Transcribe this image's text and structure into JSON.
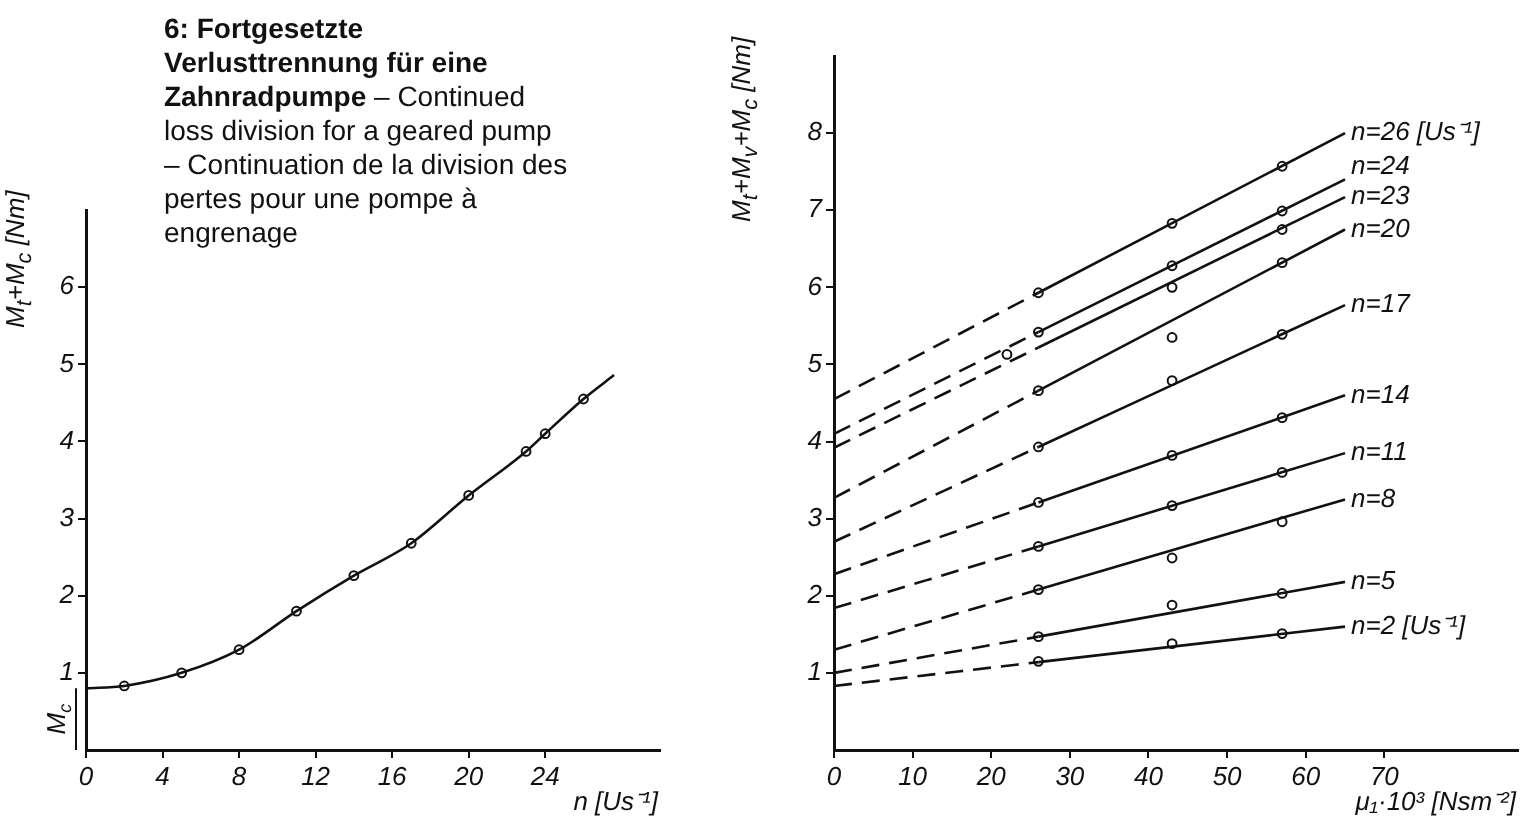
{
  "chart_data": [
    {
      "type": "line",
      "title": "6: Fortgesetzte Verlusttrennung für eine Zahnradpumpe",
      "subtitle": "– Continued loss division for a geared pump – Continuation de la division des pertes pour une pompe à engrenage",
      "xlabel": "n [Us⁻¹]",
      "ylabel": "M$_{t}$+M$_{c}$ [Nm]",
      "xlim": [
        0,
        30
      ],
      "ylim": [
        0,
        7
      ],
      "xticks": [
        0,
        4,
        8,
        12,
        16,
        20,
        24
      ],
      "yticks": [
        1,
        2,
        3,
        4,
        5,
        6
      ],
      "grid": false,
      "legend": false,
      "annotations": [
        {
          "text": "M$_{c}$",
          "x": 0,
          "y": 0.8
        }
      ],
      "series": [
        {
          "color": "#111111",
          "marker": "none",
          "line_style": "solid",
          "x": [
            0,
            2,
            5,
            8,
            11,
            14,
            17,
            20,
            23,
            24,
            26,
            27.6
          ],
          "values": [
            0.8,
            0.83,
            1.0,
            1.3,
            1.8,
            2.26,
            2.68,
            3.3,
            3.87,
            4.1,
            4.55,
            4.86
          ]
        },
        {
          "type": "scatter",
          "color": "#111111",
          "marker": "circle",
          "x": [
            2,
            5,
            8,
            11,
            14,
            17,
            20,
            23,
            24,
            26
          ],
          "values": [
            0.83,
            1.0,
            1.3,
            1.8,
            2.26,
            2.68,
            3.3,
            3.87,
            4.1,
            4.55
          ]
        }
      ]
    },
    {
      "type": "line",
      "xlabel": "μ₁·10³ [Nsm⁻²]",
      "ylabel": "M$_{t}$+M$_{v}$+M$_{c}$ [Nm]",
      "xlim": [
        0,
        87
      ],
      "ylim": [
        0,
        9
      ],
      "xticks": [
        0,
        10,
        20,
        30,
        40,
        50,
        60,
        70
      ],
      "yticks": [
        1,
        2,
        3,
        4,
        5,
        6,
        7,
        8
      ],
      "grid": false,
      "legend": false,
      "series": [
        {
          "color": "#111111",
          "line_style": "dashed",
          "marker": "none",
          "x": [
            0,
            26
          ],
          "values": [
            0.83,
            1.14
          ]
        },
        {
          "name": "n=2 [Us⁻¹]",
          "color": "#111111",
          "line_style": "solid",
          "marker": "none",
          "x": [
            26,
            65
          ],
          "values": [
            1.14,
            1.6
          ]
        },
        {
          "color": "#111111",
          "line_style": "dashed",
          "marker": "none",
          "x": [
            0,
            26
          ],
          "values": [
            1.0,
            1.47
          ]
        },
        {
          "name": "n=5",
          "color": "#111111",
          "line_style": "solid",
          "marker": "none",
          "x": [
            26,
            65
          ],
          "values": [
            1.47,
            2.18
          ]
        },
        {
          "color": "#111111",
          "line_style": "dashed",
          "marker": "none",
          "x": [
            0,
            26
          ],
          "values": [
            1.3,
            2.08
          ]
        },
        {
          "name": "n=8",
          "color": "#111111",
          "line_style": "solid",
          "marker": "none",
          "x": [
            26,
            65
          ],
          "values": [
            2.08,
            3.25
          ]
        },
        {
          "color": "#111111",
          "line_style": "dashed",
          "marker": "none",
          "x": [
            0,
            26
          ],
          "values": [
            1.84,
            2.64
          ]
        },
        {
          "name": "n=11",
          "color": "#111111",
          "line_style": "solid",
          "marker": "none",
          "x": [
            26,
            65
          ],
          "values": [
            2.64,
            3.85
          ]
        },
        {
          "color": "#111111",
          "line_style": "dashed",
          "marker": "none",
          "x": [
            0,
            26
          ],
          "values": [
            2.28,
            3.21
          ]
        },
        {
          "name": "n=14",
          "color": "#111111",
          "line_style": "solid",
          "marker": "none",
          "x": [
            26,
            65
          ],
          "values": [
            3.21,
            4.6
          ]
        },
        {
          "color": "#111111",
          "line_style": "dashed",
          "marker": "none",
          "x": [
            0,
            26
          ],
          "values": [
            2.7,
            3.93
          ]
        },
        {
          "name": "n=17",
          "color": "#111111",
          "line_style": "solid",
          "marker": "none",
          "x": [
            26,
            65
          ],
          "values": [
            3.93,
            5.77
          ]
        },
        {
          "color": "#111111",
          "line_style": "dashed",
          "marker": "none",
          "x": [
            0,
            26
          ],
          "values": [
            3.27,
            4.66
          ]
        },
        {
          "name": "n=20",
          "color": "#111111",
          "line_style": "solid",
          "marker": "none",
          "x": [
            26,
            65
          ],
          "values": [
            4.66,
            6.75
          ]
        },
        {
          "color": "#111111",
          "line_style": "dashed",
          "marker": "none",
          "x": [
            0,
            26
          ],
          "values": [
            3.92,
            5.22
          ]
        },
        {
          "name": "n=23",
          "color": "#111111",
          "line_style": "solid",
          "marker": "none",
          "x": [
            26,
            65
          ],
          "values": [
            5.22,
            7.17
          ]
        },
        {
          "color": "#111111",
          "line_style": "dashed",
          "marker": "none",
          "x": [
            0,
            26
          ],
          "values": [
            4.1,
            5.42
          ]
        },
        {
          "name": "n=24",
          "color": "#111111",
          "line_style": "solid",
          "marker": "none",
          "x": [
            26,
            65
          ],
          "values": [
            5.42,
            7.4
          ]
        },
        {
          "color": "#111111",
          "line_style": "dashed",
          "marker": "none",
          "x": [
            0,
            26
          ],
          "values": [
            4.55,
            5.93
          ]
        },
        {
          "name": "n=26 [Us⁻¹]",
          "color": "#111111",
          "line_style": "solid",
          "marker": "none",
          "x": [
            26,
            65
          ],
          "values": [
            5.93,
            8.0
          ]
        },
        {
          "type": "scatter",
          "color": "#111111",
          "marker": "circle",
          "x": [
            26,
            43,
            57,
            26,
            43,
            57,
            26,
            43,
            57,
            26,
            43,
            57,
            26,
            43,
            57,
            26,
            43,
            57,
            26,
            43,
            57,
            22,
            43,
            57,
            26,
            43,
            57,
            26,
            43,
            57
          ],
          "values": [
            1.15,
            1.38,
            1.51,
            1.47,
            1.88,
            2.03,
            2.08,
            2.49,
            2.96,
            2.64,
            3.17,
            3.6,
            3.21,
            3.82,
            4.31,
            3.93,
            4.79,
            5.39,
            4.66,
            5.35,
            6.32,
            5.13,
            6.0,
            6.75,
            5.42,
            6.28,
            6.99,
            5.93,
            6.83,
            7.57
          ]
        }
      ]
    }
  ]
}
